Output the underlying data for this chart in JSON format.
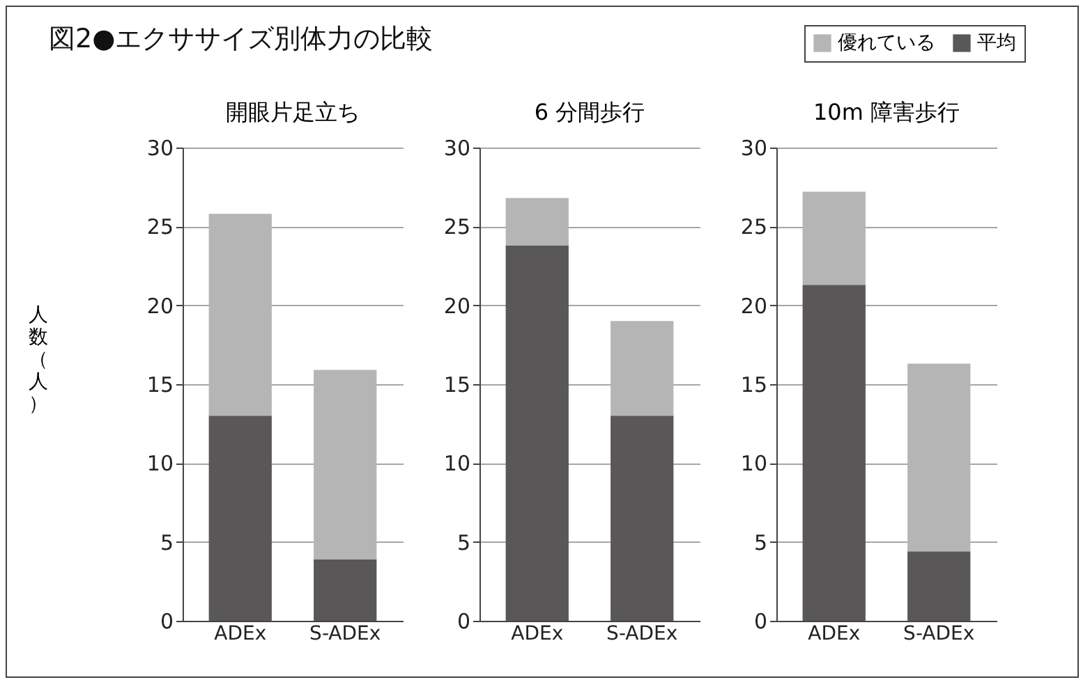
{
  "chart_data": [
    {
      "type": "bar",
      "title": "開眼片足立ち",
      "ylabel": "人数（人）",
      "legend": "top right",
      "annotations": [
        "図2●エクササイズ別体力の比較"
      ],
      "categories": [
        "ADEx",
        "S-ADEx"
      ],
      "stacked": true,
      "ylim": [
        0,
        30
      ],
      "yticks": [
        0,
        5,
        10,
        15,
        20,
        25,
        30
      ],
      "grid": "y",
      "series": [
        {
          "name": "平均",
          "color": "#595757",
          "values": [
            13,
            3.9
          ]
        },
        {
          "name": "優れている",
          "color": "#b5b5b6",
          "values": [
            12.8,
            12
          ]
        }
      ]
    },
    {
      "type": "bar",
      "title": "6 分間歩行",
      "categories": [
        "ADEx",
        "S-ADEx"
      ],
      "stacked": true,
      "ylim": [
        0,
        30
      ],
      "yticks": [
        0,
        5,
        10,
        15,
        20,
        25,
        30
      ],
      "grid": "y",
      "series": [
        {
          "color": "#595757",
          "values": [
            23.8,
            13
          ]
        },
        {
          "color": "#b5b5b6",
          "values": [
            3,
            6
          ]
        }
      ]
    },
    {
      "type": "bar",
      "title": "10m 障害歩行",
      "categories": [
        "ADEx",
        "S-ADEx"
      ],
      "stacked": true,
      "ylim": [
        0,
        30
      ],
      "yticks": [
        0,
        5,
        10,
        15,
        20,
        25,
        30
      ],
      "grid": "y",
      "series": [
        {
          "color": "#595757",
          "values": [
            21.3,
            4.4
          ]
        },
        {
          "color": "#b5b5b6",
          "values": [
            5.9,
            11.9
          ]
        }
      ]
    }
  ]
}
